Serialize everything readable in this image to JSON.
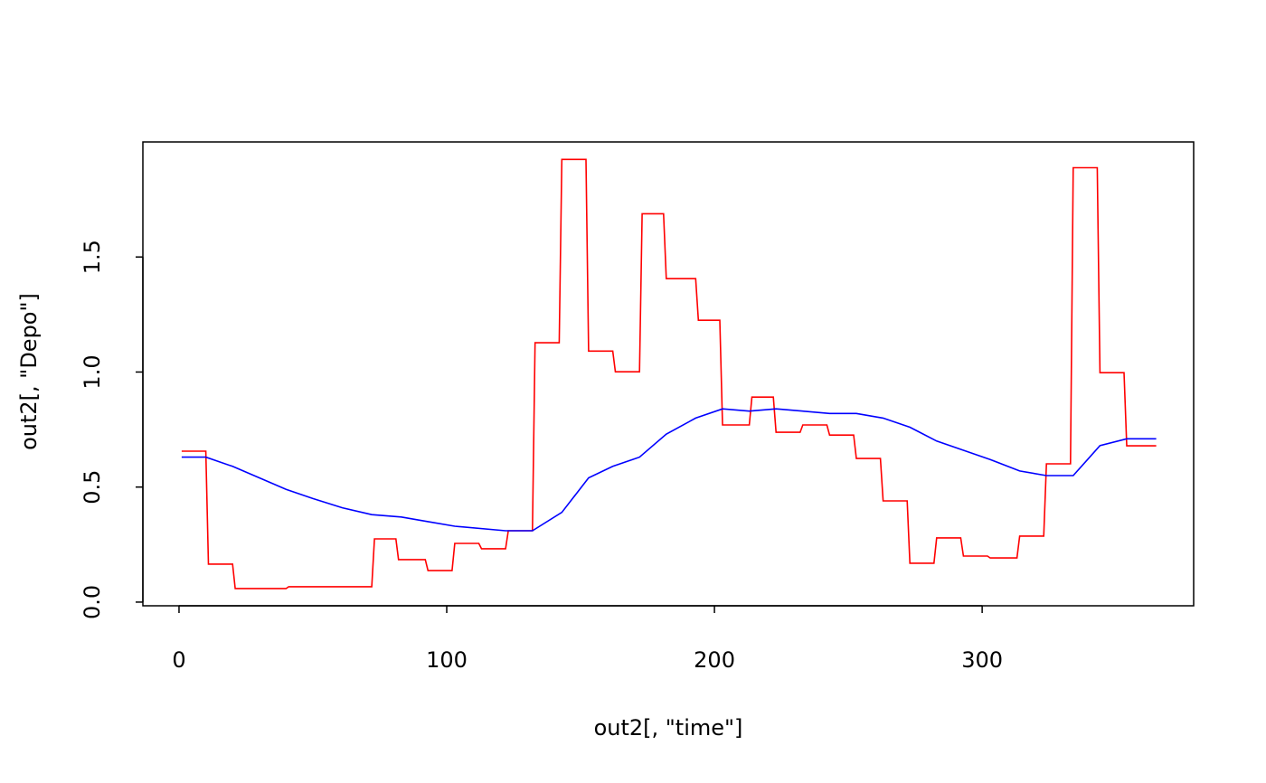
{
  "chart_data": {
    "type": "line",
    "title": "",
    "xlabel": "out2[, \"time\"]",
    "ylabel": "out2[, \"Depo\"]",
    "xlim": [
      -13.5,
      379
    ],
    "ylim": [
      -0.016,
      2.0
    ],
    "x_ticks": [
      0,
      100,
      200,
      300
    ],
    "x_tick_labels": [
      "0",
      "100",
      "200",
      "300"
    ],
    "y_ticks": [
      0.0,
      0.5,
      1.0,
      1.5
    ],
    "y_tick_labels": [
      "0.0",
      "0.5",
      "1.0",
      "1.5"
    ],
    "grid": false,
    "series": [
      {
        "color": "#ff0000",
        "x": [
          1,
          10,
          11,
          20,
          21,
          40,
          41,
          72,
          73,
          81,
          82,
          92,
          93,
          102,
          103,
          112,
          113,
          122,
          123,
          132,
          133,
          142,
          143,
          152,
          153,
          162,
          163,
          172,
          173,
          181,
          182,
          193,
          194,
          202,
          203,
          213,
          214,
          222,
          223,
          232,
          233,
          242,
          243,
          252,
          253,
          262,
          263,
          272,
          273,
          282,
          283,
          292,
          293,
          302,
          303,
          313,
          314,
          323,
          324,
          333,
          334,
          343,
          344,
          353,
          354,
          365
        ],
        "y": [
          0.656,
          0.656,
          0.165,
          0.165,
          0.059,
          0.059,
          0.067,
          0.067,
          0.275,
          0.275,
          0.185,
          0.185,
          0.137,
          0.137,
          0.255,
          0.255,
          0.232,
          0.232,
          0.31,
          0.31,
          1.127,
          1.127,
          1.924,
          1.924,
          1.091,
          1.091,
          1.001,
          1.001,
          1.688,
          1.688,
          1.406,
          1.406,
          1.225,
          1.225,
          0.77,
          0.77,
          0.891,
          0.891,
          0.738,
          0.738,
          0.77,
          0.77,
          0.726,
          0.726,
          0.624,
          0.624,
          0.44,
          0.44,
          0.169,
          0.169,
          0.279,
          0.279,
          0.2,
          0.2,
          0.192,
          0.192,
          0.287,
          0.287,
          0.601,
          0.601,
          1.888,
          1.888,
          0.997,
          0.997,
          0.679,
          0.679
        ]
      },
      {
        "color": "#0000ff",
        "x": [
          1,
          10,
          20,
          30,
          40,
          50,
          61,
          72,
          83,
          93,
          103,
          122,
          132,
          143,
          153,
          162,
          172,
          182,
          193,
          203,
          213,
          223,
          233,
          243,
          253,
          263,
          273,
          283,
          293,
          303,
          314,
          324,
          334,
          344,
          354,
          365
        ],
        "y": [
          0.63,
          0.63,
          0.59,
          0.54,
          0.49,
          0.45,
          0.41,
          0.38,
          0.37,
          0.35,
          0.33,
          0.31,
          0.31,
          0.39,
          0.54,
          0.59,
          0.63,
          0.73,
          0.8,
          0.84,
          0.83,
          0.84,
          0.83,
          0.82,
          0.82,
          0.8,
          0.76,
          0.7,
          0.66,
          0.62,
          0.57,
          0.55,
          0.55,
          0.68,
          0.71,
          0.71
        ]
      }
    ]
  }
}
